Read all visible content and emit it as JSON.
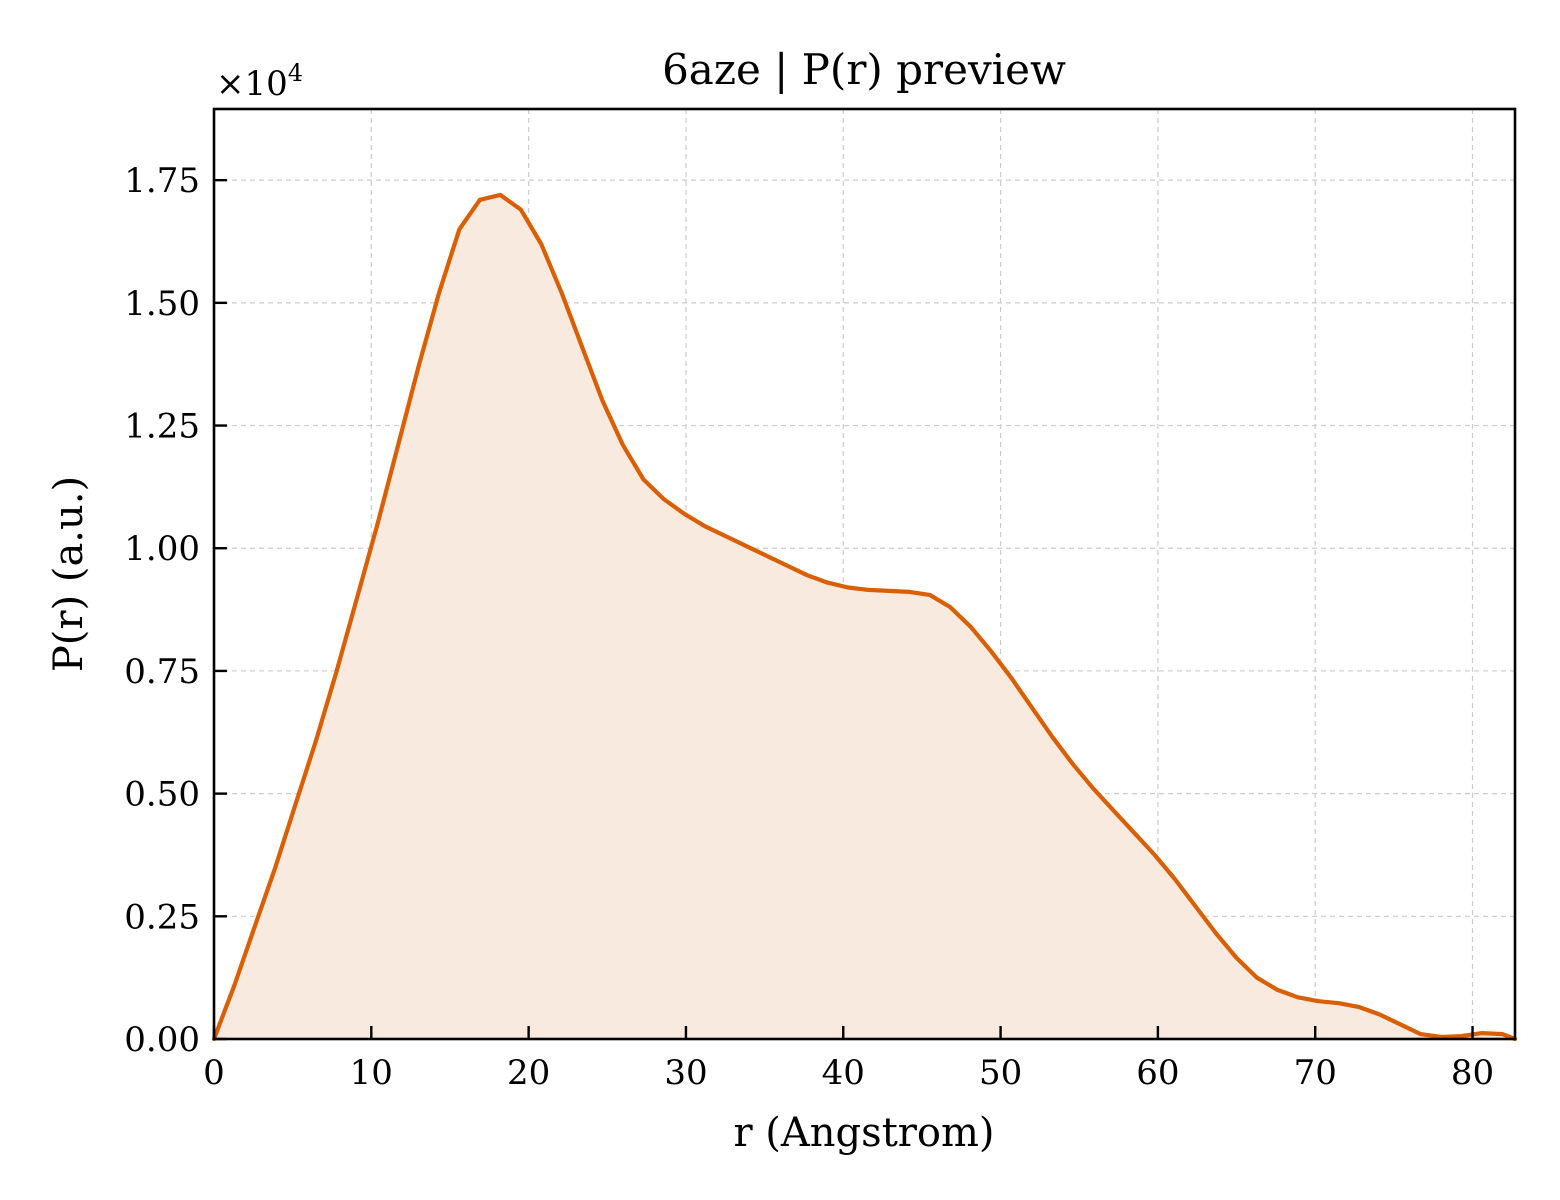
{
  "chart_data": {
    "type": "area",
    "title": "6aze | P(r) preview",
    "xlabel": "r (Angstrom)",
    "ylabel": "P(r) (a.u.)",
    "y_multiplier_label": "×10",
    "y_multiplier_exponent": "4",
    "xlim": [
      0,
      82.7
    ],
    "ylim": [
      0,
      1.895
    ],
    "xticks": [
      0,
      10,
      20,
      30,
      40,
      50,
      60,
      70,
      80
    ],
    "yticks": [
      0,
      0.25,
      0.5,
      0.75,
      1.0,
      1.25,
      1.5,
      1.75
    ],
    "xtick_labels": [
      "0",
      "10",
      "20",
      "30",
      "40",
      "50",
      "60",
      "70",
      "80"
    ],
    "ytick_labels": [
      "0.00",
      "0.25",
      "0.50",
      "0.75",
      "1.00",
      "1.25",
      "1.50",
      "1.75"
    ],
    "grid": true,
    "line_color": "#d95f02",
    "fill_color": "#f9eadf",
    "series": [
      {
        "x": [
          0,
          1.3,
          2.6,
          3.9,
          5.2,
          6.5,
          7.8,
          9.1,
          10.4,
          11.7,
          13.0,
          14.3,
          15.6,
          16.9,
          18.2,
          19.5,
          20.8,
          22.1,
          23.4,
          24.7,
          26.0,
          27.3,
          28.6,
          29.9,
          31.2,
          32.5,
          33.8,
          35.1,
          36.4,
          37.7,
          39.0,
          40.3,
          41.6,
          42.9,
          44.2,
          45.5,
          46.8,
          48.1,
          49.4,
          50.7,
          52.0,
          53.3,
          54.6,
          55.9,
          57.2,
          58.5,
          59.8,
          61.1,
          62.4,
          63.7,
          65.0,
          66.3,
          67.6,
          68.9,
          70.2,
          71.5,
          72.8,
          74.1,
          75.4,
          76.7,
          78.0,
          79.3,
          80.6,
          81.9,
          82.7
        ],
        "y": [
          0.0,
          0.11,
          0.23,
          0.35,
          0.48,
          0.61,
          0.75,
          0.9,
          1.05,
          1.21,
          1.37,
          1.52,
          1.65,
          1.71,
          1.72,
          1.69,
          1.62,
          1.52,
          1.41,
          1.3,
          1.21,
          1.14,
          1.1,
          1.07,
          1.045,
          1.025,
          1.005,
          0.985,
          0.965,
          0.945,
          0.93,
          0.92,
          0.915,
          0.913,
          0.911,
          0.905,
          0.88,
          0.84,
          0.79,
          0.735,
          0.675,
          0.615,
          0.56,
          0.51,
          0.465,
          0.42,
          0.375,
          0.325,
          0.27,
          0.215,
          0.165,
          0.125,
          0.1,
          0.085,
          0.077,
          0.073,
          0.065,
          0.05,
          0.03,
          0.01,
          0.004,
          0.006,
          0.012,
          0.01,
          0.0
        ]
      }
    ]
  }
}
